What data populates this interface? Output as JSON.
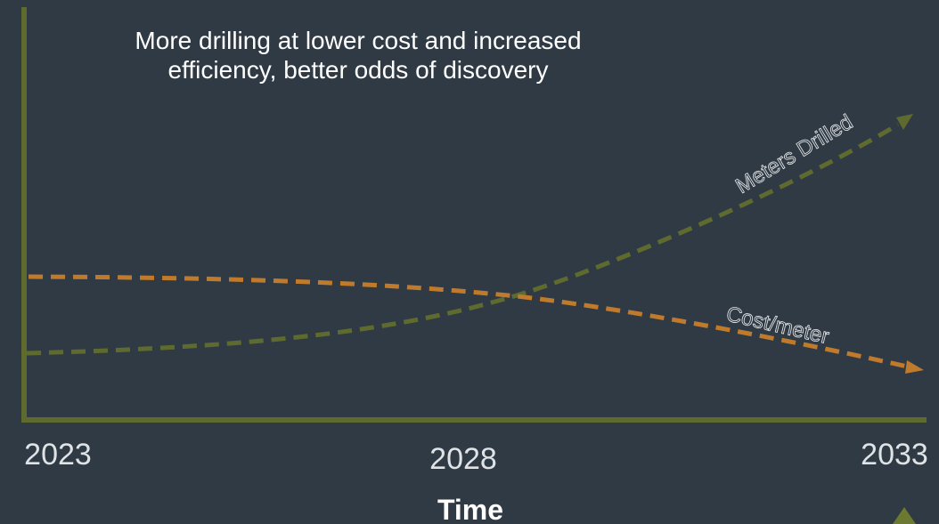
{
  "title": [
    "More drilling at lower cost and increased",
    "efficiency, better odds of discovery"
  ],
  "x_axis": {
    "labels": [
      "2023",
      "2028",
      "2033"
    ],
    "title": "Time"
  },
  "curves": [
    {
      "label": "Meters Drilled"
    },
    {
      "label": "Cost/meter"
    }
  ]
}
